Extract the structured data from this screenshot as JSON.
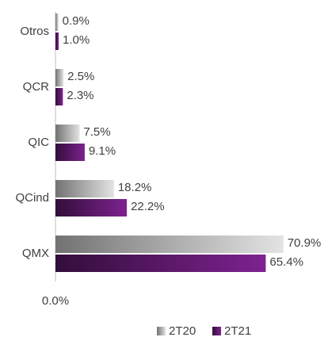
{
  "chart_data": {
    "type": "hbar",
    "categories": [
      "Otros",
      "QCR",
      "QIC",
      "QCind",
      "QMX"
    ],
    "series": [
      {
        "name": "2T20",
        "color": "#e3e3e3",
        "values": [
          0.9,
          2.5,
          7.5,
          18.2,
          70.9
        ],
        "value_labels": [
          "0.9%",
          "2.5%",
          "7.5%",
          "18.2%",
          "70.9%"
        ]
      },
      {
        "name": "2T21",
        "color": "#7e2290",
        "values": [
          1.0,
          2.3,
          9.1,
          22.2,
          65.4
        ],
        "value_labels": [
          "1.0%",
          "2.3%",
          "9.1%",
          "22.2%",
          "65.4%"
        ]
      }
    ],
    "xlim": [
      0,
      86
    ],
    "xticks": [
      {
        "value": 0,
        "label": "0.0%"
      }
    ],
    "legend": "bottom"
  }
}
